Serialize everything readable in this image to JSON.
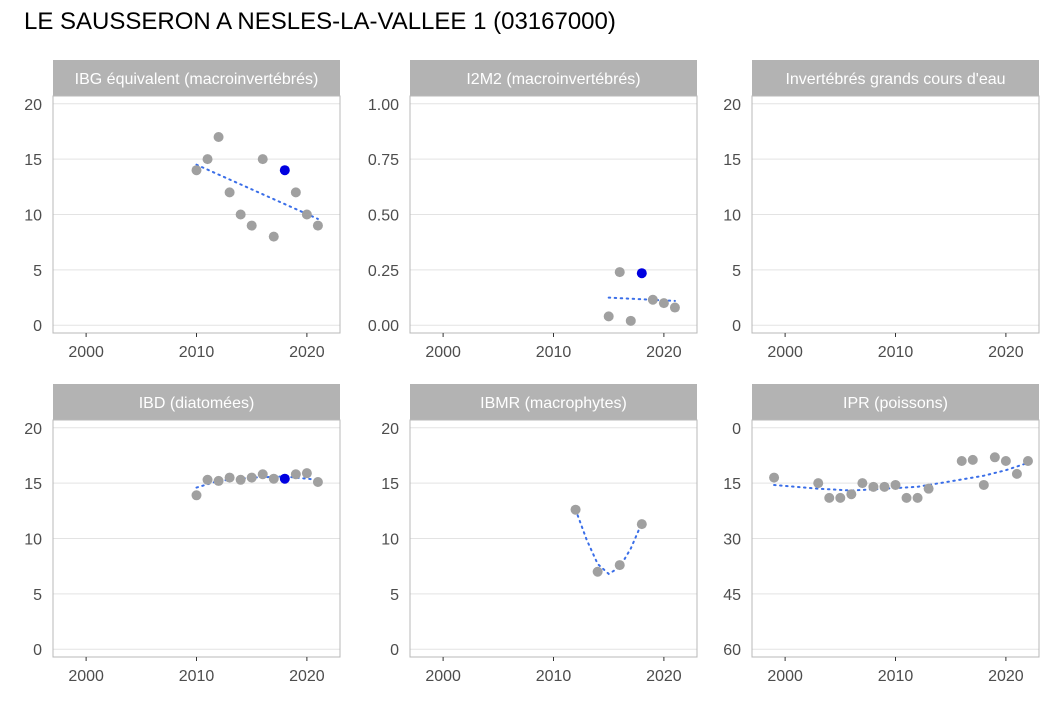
{
  "title": "LE SAUSSERON A NESLES-LA-VALLEE 1 (03167000)",
  "colors": {
    "strip": "#b3b3b3",
    "point": "#a0a0a0",
    "highlight": "#0000e0",
    "trend": "#3a6ee8",
    "grid": "#e3e3e3",
    "border": "#b8b8b8"
  },
  "chart_data": [
    {
      "type": "scatter",
      "title": "IBG équivalent (macroinvertébrés)",
      "xlim": [
        1997,
        2023
      ],
      "xticks": [
        2000,
        2010,
        2020
      ],
      "ylim": [
        -0.7,
        20.7
      ],
      "yticks": [
        0,
        5,
        10,
        15,
        20
      ],
      "ytick_labels": [
        "0",
        "5",
        "10",
        "15",
        "20"
      ],
      "reverse_y": false,
      "points": [
        [
          2010,
          14
        ],
        [
          2011,
          15
        ],
        [
          2012,
          17
        ],
        [
          2013,
          12
        ],
        [
          2014,
          10
        ],
        [
          2015,
          9
        ],
        [
          2016,
          15
        ],
        [
          2017,
          8
        ],
        [
          2019,
          12
        ],
        [
          2020,
          10
        ],
        [
          2021,
          9
        ]
      ],
      "highlight": [
        [
          2018,
          14
        ]
      ],
      "trend": [
        [
          2010,
          14.5
        ],
        [
          2021,
          9.6
        ]
      ]
    },
    {
      "type": "scatter",
      "title": "I2M2 (macroinvertébrés)",
      "xlim": [
        1997,
        2023
      ],
      "xticks": [
        2000,
        2010,
        2020
      ],
      "ylim": [
        -0.035,
        1.035
      ],
      "yticks": [
        0,
        0.25,
        0.5,
        0.75,
        1.0
      ],
      "ytick_labels": [
        "0.00",
        "0.25",
        "0.50",
        "0.75",
        "1.00"
      ],
      "reverse_y": false,
      "points": [
        [
          2015,
          0.04
        ],
        [
          2016,
          0.24
        ],
        [
          2017,
          0.02
        ],
        [
          2019,
          0.115
        ],
        [
          2020,
          0.1
        ],
        [
          2021,
          0.08
        ]
      ],
      "highlight": [
        [
          2018,
          0.235
        ]
      ],
      "trend": [
        [
          2015,
          0.125
        ],
        [
          2021,
          0.11
        ]
      ]
    },
    {
      "type": "scatter",
      "title": "Invertébrés grands cours d'eau",
      "xlim": [
        1997,
        2023
      ],
      "xticks": [
        2000,
        2010,
        2020
      ],
      "ylim": [
        -0.7,
        20.7
      ],
      "yticks": [
        0,
        5,
        10,
        15,
        20
      ],
      "ytick_labels": [
        "0",
        "5",
        "10",
        "15",
        "20"
      ],
      "reverse_y": false,
      "points": [],
      "highlight": [],
      "trend": []
    },
    {
      "type": "scatter",
      "title": "IBD (diatomées)",
      "xlim": [
        1997,
        2023
      ],
      "xticks": [
        2000,
        2010,
        2020
      ],
      "ylim": [
        -0.7,
        20.7
      ],
      "yticks": [
        0,
        5,
        10,
        15,
        20
      ],
      "ytick_labels": [
        "0",
        "5",
        "10",
        "15",
        "20"
      ],
      "reverse_y": false,
      "points": [
        [
          2010,
          13.9
        ],
        [
          2011,
          15.3
        ],
        [
          2012,
          15.2
        ],
        [
          2013,
          15.5
        ],
        [
          2014,
          15.3
        ],
        [
          2015,
          15.5
        ],
        [
          2016,
          15.8
        ],
        [
          2017,
          15.4
        ],
        [
          2019,
          15.8
        ],
        [
          2020,
          15.9
        ],
        [
          2021,
          15.1
        ]
      ],
      "highlight": [
        [
          2018,
          15.4
        ]
      ],
      "trend": [
        [
          2010,
          14.6
        ],
        [
          2012,
          15.2
        ],
        [
          2015,
          15.5
        ],
        [
          2018,
          15.6
        ],
        [
          2021,
          15.3
        ]
      ]
    },
    {
      "type": "scatter",
      "title": "IBMR (macrophytes)",
      "xlim": [
        1997,
        2023
      ],
      "xticks": [
        2000,
        2010,
        2020
      ],
      "ylim": [
        -0.7,
        20.7
      ],
      "yticks": [
        0,
        5,
        10,
        15,
        20
      ],
      "ytick_labels": [
        "0",
        "5",
        "10",
        "15",
        "20"
      ],
      "reverse_y": false,
      "points": [
        [
          2012,
          12.6
        ],
        [
          2014,
          7.0
        ],
        [
          2016,
          7.6
        ],
        [
          2018,
          11.3
        ]
      ],
      "highlight": [],
      "trend": [
        [
          2012,
          12.6
        ],
        [
          2013,
          9.9
        ],
        [
          2014,
          7.7
        ],
        [
          2015,
          6.8
        ],
        [
          2016,
          7.4
        ],
        [
          2017,
          9.1
        ],
        [
          2018,
          11.4
        ]
      ]
    },
    {
      "type": "scatter",
      "title": "IPR (poissons)",
      "xlim": [
        1997,
        2023
      ],
      "xticks": [
        2000,
        2010,
        2020
      ],
      "ylim": [
        -2.1,
        62.1
      ],
      "yticks": [
        0,
        15,
        30,
        45,
        60
      ],
      "ytick_labels": [
        "0",
        "15",
        "30",
        "45",
        "60"
      ],
      "reverse_y": true,
      "points": [
        [
          1999,
          13.5
        ],
        [
          2003,
          15
        ],
        [
          2004,
          19
        ],
        [
          2005,
          19
        ],
        [
          2006,
          18
        ],
        [
          2007,
          15
        ],
        [
          2008,
          16
        ],
        [
          2009,
          16
        ],
        [
          2010,
          15.5
        ],
        [
          2011,
          19
        ],
        [
          2012,
          19
        ],
        [
          2013,
          16.5
        ],
        [
          2016,
          9
        ],
        [
          2017,
          8.7
        ],
        [
          2018,
          15.5
        ],
        [
          2019,
          8
        ],
        [
          2020,
          9
        ],
        [
          2021,
          12.5
        ],
        [
          2022,
          9
        ]
      ],
      "highlight": [],
      "trend": [
        [
          1999,
          15.5
        ],
        [
          2003,
          16.5
        ],
        [
          2006,
          17
        ],
        [
          2009,
          16.5
        ],
        [
          2012,
          16
        ],
        [
          2015,
          14.5
        ],
        [
          2018,
          13
        ],
        [
          2020,
          11.5
        ],
        [
          2022,
          9.5
        ]
      ]
    }
  ]
}
